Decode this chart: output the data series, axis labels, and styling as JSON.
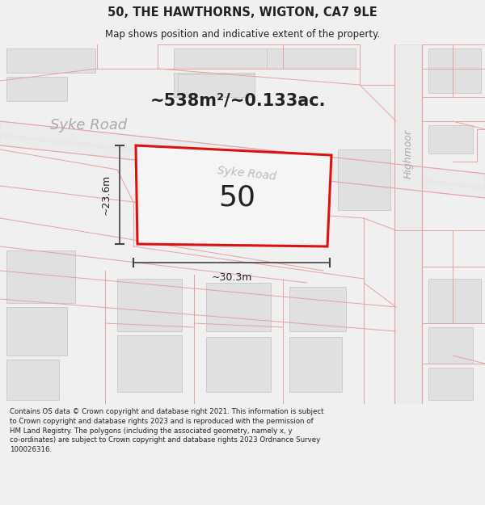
{
  "title": "50, THE HAWTHORNS, WIGTON, CA7 9LE",
  "subtitle": "Map shows position and indicative extent of the property.",
  "area_text": "~538m²/~0.133ac.",
  "number_label": "50",
  "dim_width": "~30.3m",
  "dim_height": "~23.6m",
  "road_label_left": "Syke Road",
  "road_label_diag": "Syke Road",
  "road_label_right": "Highmoor",
  "disclaimer": "Contains OS data © Crown copyright and database right 2021. This information is subject to Crown copyright and database rights 2023 and is reproduced with the permission of HM Land Registry. The polygons (including the associated geometry, namely x, y co-ordinates) are subject to Crown copyright and database rights 2023 Ordnance Survey 100026316.",
  "bg_map": "#ffffff",
  "bg_outer": "#f0f0f0",
  "building_fill": "#e0e0e0",
  "building_edge": "#cccccc",
  "road_fill": "#eeeeee",
  "road_edge": "#dddddd",
  "pink_line": "#e8a0a0",
  "plot_red": "#dd1111",
  "dim_line_color": "#444444",
  "text_dark": "#222222",
  "text_gray": "#999999",
  "title_fontsize": 10.5,
  "subtitle_fontsize": 8.5,
  "area_fontsize": 15,
  "number_fontsize": 26,
  "dim_fontsize": 9,
  "road_label_fontsize": 12,
  "disclaimer_fontsize": 6.2
}
